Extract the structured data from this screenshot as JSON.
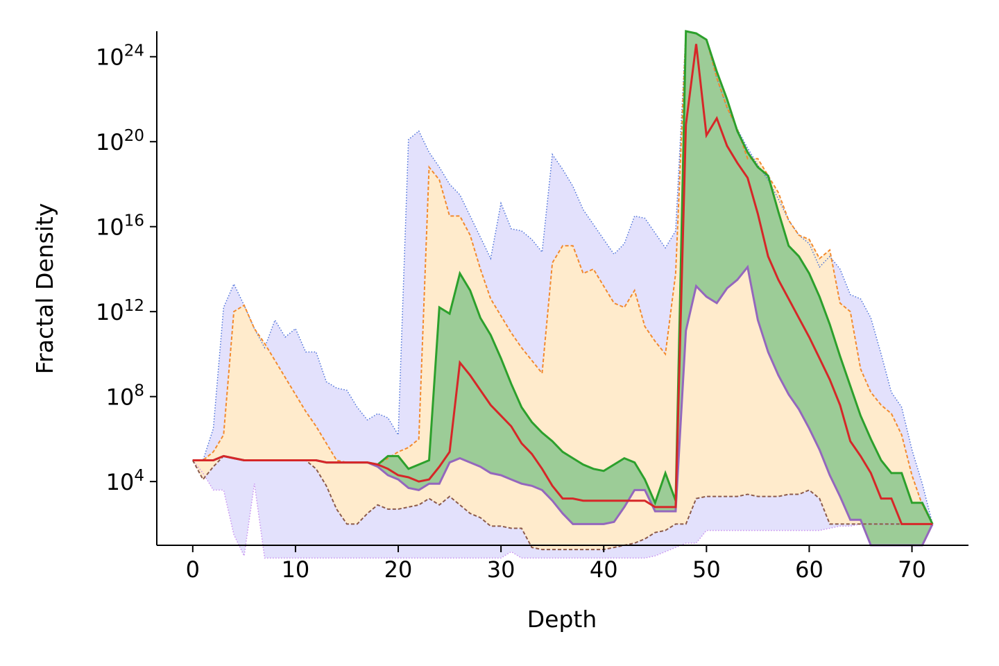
{
  "chart_data": {
    "type": "area",
    "xlabel": "Depth",
    "ylabel": "Fractal Density",
    "xlim": [
      -3.5,
      75.5
    ],
    "ylim_log10": [
      1.0,
      25.2
    ],
    "yscale": "log",
    "grid": false,
    "x_ticks": [
      0,
      10,
      20,
      30,
      40,
      50,
      60,
      70
    ],
    "y_ticks": [
      {
        "base": "10",
        "exp": "4",
        "log10": 4
      },
      {
        "base": "10",
        "exp": "8",
        "log10": 8
      },
      {
        "base": "10",
        "exp": "12",
        "log10": 12
      },
      {
        "base": "10",
        "exp": "16",
        "log10": 16
      },
      {
        "base": "10",
        "exp": "20",
        "log10": 20
      },
      {
        "base": "10",
        "exp": "24",
        "log10": 24
      }
    ],
    "x": [
      0,
      1,
      2,
      3,
      4,
      5,
      6,
      7,
      8,
      9,
      10,
      11,
      12,
      13,
      14,
      15,
      16,
      17,
      18,
      19,
      20,
      21,
      22,
      23,
      24,
      25,
      26,
      27,
      28,
      29,
      30,
      31,
      32,
      33,
      34,
      35,
      36,
      37,
      38,
      39,
      40,
      41,
      42,
      43,
      44,
      45,
      46,
      47,
      48,
      49,
      50,
      51,
      52,
      53,
      54,
      55,
      56,
      57,
      58,
      59,
      60,
      61,
      62,
      63,
      64,
      65,
      66,
      67,
      68,
      69,
      70,
      71,
      72
    ],
    "colors": {
      "outer_fill": "#e3e1fc",
      "outer_max_line": "#4c72d8",
      "outer_min_line": "#c890f0",
      "inner_fill": "#ffebcc",
      "inner_max_line": "#f28a2e",
      "inner_min_line": "#8c5a4a",
      "iqr_fill": "#9ccc97",
      "iqr_upper_line": "#2ca02c",
      "iqr_lower_line": "#9467bd",
      "median_line": "#d62728"
    },
    "series": [
      {
        "role": "outer_max",
        "values": [
          5.0,
          5.0,
          6.5,
          12.2,
          13.3,
          12.3,
          11.2,
          10.3,
          11.6,
          10.8,
          11.2,
          10.1,
          10.1,
          8.7,
          8.4,
          8.3,
          7.5,
          6.9,
          7.2,
          7.0,
          6.2,
          20.1,
          20.5,
          19.5,
          18.8,
          18.0,
          17.5,
          16.5,
          15.5,
          14.5,
          17.1,
          15.9,
          15.8,
          15.4,
          14.8,
          19.4,
          18.7,
          17.9,
          16.8,
          16.1,
          15.4,
          14.7,
          15.2,
          16.5,
          16.4,
          15.7,
          15.0,
          15.8,
          25.2,
          25.1,
          24.8,
          23.0,
          21.6,
          20.6,
          19.7,
          18.9,
          18.2,
          17.3,
          16.3,
          15.6,
          15.2,
          14.1,
          14.6,
          14.0,
          12.8,
          12.6,
          11.7,
          10.0,
          8.2,
          7.5,
          5.5,
          3.9,
          2.0
        ]
      },
      {
        "role": "inner_max",
        "values": [
          5.0,
          5.0,
          5.4,
          6.2,
          12.0,
          12.3,
          11.2,
          10.5,
          9.7,
          8.9,
          8.1,
          7.3,
          6.6,
          5.8,
          5.0,
          4.9,
          4.9,
          4.9,
          4.8,
          5.1,
          5.4,
          5.6,
          6.0,
          18.8,
          18.2,
          16.5,
          16.5,
          15.6,
          14.0,
          12.6,
          11.8,
          11.0,
          10.3,
          9.7,
          9.1,
          14.3,
          15.1,
          15.1,
          13.8,
          14.0,
          13.2,
          12.4,
          12.2,
          13.0,
          11.3,
          10.6,
          10.0,
          13.8,
          25.2,
          25.1,
          24.8,
          23.0,
          21.6,
          20.6,
          19.2,
          19.2,
          18.4,
          17.6,
          16.3,
          15.6,
          15.4,
          14.5,
          14.9,
          12.4,
          12.0,
          9.3,
          8.2,
          7.6,
          7.2,
          6.2,
          4.3,
          2.9,
          2.0
        ]
      },
      {
        "role": "iqr_upper",
        "values": [
          5.0,
          5.0,
          5.0,
          5.2,
          5.1,
          5.0,
          5.0,
          5.0,
          5.0,
          5.0,
          5.0,
          5.0,
          5.0,
          4.9,
          4.9,
          4.9,
          4.9,
          4.9,
          4.8,
          5.2,
          5.2,
          4.6,
          4.8,
          5.0,
          12.2,
          11.9,
          13.8,
          13.0,
          11.7,
          10.9,
          9.8,
          8.6,
          7.5,
          6.8,
          6.3,
          5.9,
          5.4,
          5.1,
          4.8,
          4.6,
          4.5,
          4.8,
          5.1,
          4.9,
          4.1,
          3.0,
          4.4,
          3.1,
          25.2,
          25.1,
          24.8,
          23.3,
          22.0,
          20.5,
          19.5,
          18.8,
          18.4,
          16.7,
          15.1,
          14.6,
          13.8,
          12.7,
          11.4,
          9.9,
          8.5,
          7.1,
          6.0,
          5.0,
          4.4,
          4.4,
          3.0,
          3.0,
          2.0
        ]
      },
      {
        "role": "median",
        "values": [
          5.0,
          5.0,
          5.0,
          5.2,
          5.1,
          5.0,
          5.0,
          5.0,
          5.0,
          5.0,
          5.0,
          5.0,
          5.0,
          4.9,
          4.9,
          4.9,
          4.9,
          4.9,
          4.8,
          4.6,
          4.3,
          4.2,
          4.0,
          4.1,
          4.7,
          5.4,
          9.6,
          9.0,
          8.3,
          7.6,
          7.1,
          6.6,
          5.8,
          5.3,
          4.6,
          3.8,
          3.2,
          3.2,
          3.1,
          3.1,
          3.1,
          3.1,
          3.1,
          3.1,
          3.1,
          2.8,
          2.8,
          2.8,
          20.8,
          24.6,
          20.3,
          21.1,
          19.8,
          19.0,
          18.3,
          16.6,
          14.6,
          13.5,
          12.6,
          11.7,
          10.8,
          9.8,
          8.8,
          7.6,
          5.9,
          5.2,
          4.4,
          3.2,
          3.2,
          2.0,
          2.0,
          2.0,
          2.0
        ]
      },
      {
        "role": "iqr_lower",
        "values": [
          5.0,
          5.0,
          5.0,
          5.2,
          5.1,
          5.0,
          5.0,
          5.0,
          5.0,
          5.0,
          5.0,
          5.0,
          5.0,
          4.9,
          4.9,
          4.9,
          4.9,
          4.9,
          4.7,
          4.3,
          4.1,
          3.7,
          3.6,
          3.9,
          3.9,
          4.9,
          5.1,
          4.9,
          4.7,
          4.4,
          4.3,
          4.1,
          3.9,
          3.8,
          3.6,
          3.1,
          2.5,
          2.0,
          2.0,
          2.0,
          2.0,
          2.1,
          2.8,
          3.6,
          3.6,
          2.6,
          2.6,
          2.6,
          11.1,
          13.2,
          12.7,
          12.4,
          13.1,
          13.5,
          14.1,
          11.6,
          10.1,
          9.0,
          8.1,
          7.4,
          6.5,
          5.5,
          4.3,
          3.3,
          2.2,
          2.2,
          1.0,
          1.0,
          1.0,
          1.0,
          1.0,
          1.0,
          2.0
        ]
      },
      {
        "role": "inner_min",
        "values": [
          5.0,
          4.1,
          4.7,
          5.2,
          5.1,
          5.0,
          5.0,
          5.0,
          5.0,
          5.0,
          5.0,
          5.0,
          4.6,
          3.8,
          2.7,
          2.0,
          2.0,
          2.5,
          2.9,
          2.7,
          2.7,
          2.8,
          2.9,
          3.2,
          2.9,
          3.3,
          2.9,
          2.5,
          2.3,
          1.9,
          1.9,
          1.8,
          1.8,
          0.9,
          0.8,
          0.8,
          0.8,
          0.8,
          0.8,
          0.8,
          0.8,
          0.9,
          1.0,
          1.1,
          1.3,
          1.6,
          1.7,
          2.0,
          2.0,
          3.2,
          3.3,
          3.3,
          3.3,
          3.3,
          3.4,
          3.3,
          3.3,
          3.3,
          3.4,
          3.4,
          3.6,
          3.2,
          2.0,
          2.0,
          2.0,
          2.0,
          2.0,
          2.0,
          2.0,
          2.0,
          2.0,
          2.0,
          2.0
        ]
      },
      {
        "role": "outer_min",
        "values": [
          5.0,
          4.4,
          3.6,
          3.6,
          1.5,
          0.5,
          3.9,
          0.4,
          0.4,
          0.4,
          0.4,
          0.4,
          0.4,
          0.4,
          0.4,
          0.4,
          0.4,
          0.4,
          0.4,
          0.4,
          0.4,
          0.4,
          0.4,
          0.4,
          0.4,
          0.4,
          0.4,
          0.4,
          0.4,
          0.4,
          0.4,
          0.7,
          0.4,
          0.4,
          0.4,
          0.4,
          0.4,
          0.4,
          0.4,
          0.4,
          0.4,
          0.4,
          0.4,
          0.4,
          0.4,
          0.5,
          0.7,
          0.9,
          1.1,
          1.1,
          1.7,
          1.7,
          1.7,
          1.7,
          1.7,
          1.7,
          1.7,
          1.7,
          1.7,
          1.7,
          1.7,
          1.7,
          1.8,
          1.9,
          1.9,
          2.0,
          2.0,
          2.0,
          2.0,
          2.0,
          2.0,
          2.0,
          2.0
        ]
      }
    ]
  }
}
